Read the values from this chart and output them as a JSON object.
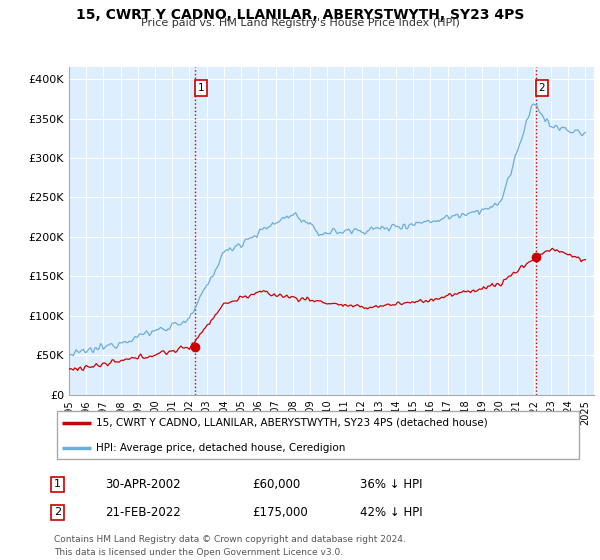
{
  "title": "15, CWRT Y CADNO, LLANILAR, ABERYSTWYTH, SY23 4PS",
  "subtitle": "Price paid vs. HM Land Registry's House Price Index (HPI)",
  "hpi_color": "#6baed6",
  "price_color": "#cc0000",
  "vline_color": "#cc0000",
  "bg_plot_color": "#ddeeff",
  "bg_color": "#ffffff",
  "grid_color": "#ffffff",
  "ytick_labels": [
    "£0",
    "£50K",
    "£100K",
    "£150K",
    "£200K",
    "£250K",
    "£300K",
    "£350K",
    "£400K"
  ],
  "yticks": [
    0,
    50000,
    100000,
    150000,
    200000,
    250000,
    300000,
    350000,
    400000
  ],
  "xmin": 1995.0,
  "xmax": 2025.5,
  "ymin": 0,
  "ymax": 415000,
  "purchase1_x": 2002.33,
  "purchase1_y": 60000,
  "purchase2_x": 2022.13,
  "purchase2_y": 175000,
  "legend_line1": "15, CWRT Y CADNO, LLANILAR, ABERYSTWYTH, SY23 4PS (detached house)",
  "legend_line2": "HPI: Average price, detached house, Ceredigion",
  "note1_label": "1",
  "note1_date": "30-APR-2002",
  "note1_price": "£60,000",
  "note1_hpi": "36% ↓ HPI",
  "note2_label": "2",
  "note2_date": "21-FEB-2022",
  "note2_price": "£175,000",
  "note2_hpi": "42% ↓ HPI",
  "footer": "Contains HM Land Registry data © Crown copyright and database right 2024.\nThis data is licensed under the Open Government Licence v3.0."
}
